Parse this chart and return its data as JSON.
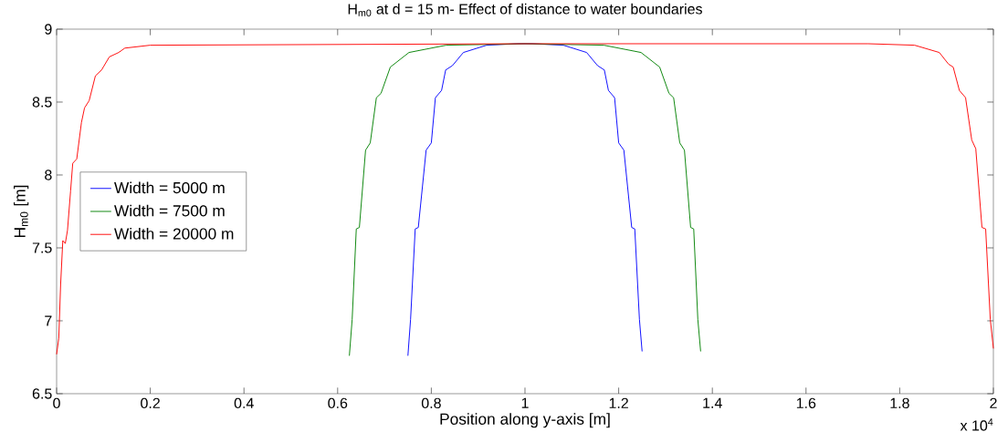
{
  "chart_data": {
    "type": "line",
    "title": "H$_{m0}$ at d = 15 m- Effect of distance to water boundaries",
    "xlabel": "Position along y-axis [m]",
    "ylabel": "H$_{m0}$ [m]",
    "annotations": [
      "x 10$^{4}$"
    ],
    "xlim": [
      0,
      2
    ],
    "ylim": [
      6.5,
      9
    ],
    "xticks": [
      0,
      0.2,
      0.4,
      0.6,
      0.8,
      1,
      1.2,
      1.4,
      1.6,
      1.8,
      2
    ],
    "yticks": [
      6.5,
      7,
      7.5,
      8,
      8.5,
      9
    ],
    "legend": "left",
    "series": [
      {
        "name": "Width = 5000 m",
        "color": "#0000ff",
        "x": [
          0.75,
          0.7557,
          0.7656,
          0.7722,
          0.7889,
          0.8,
          0.8087,
          0.8219,
          0.8306,
          0.8451,
          0.8684,
          0.9181,
          0.9843,
          1.0157,
          1.0819,
          1.1316,
          1.1549,
          1.1694,
          1.1781,
          1.1913,
          1.2,
          1.2111,
          1.2278,
          1.2344,
          1.2443,
          1.25
        ],
        "values": [
          6.76,
          7.01,
          7.63,
          7.64,
          8.17,
          8.22,
          8.53,
          8.58,
          8.72,
          8.75,
          8.84,
          8.89,
          8.9,
          8.9,
          8.89,
          8.84,
          8.75,
          8.72,
          8.58,
          8.53,
          8.22,
          8.17,
          7.64,
          7.63,
          7.01,
          6.79
        ]
      },
      {
        "name": "Width = 7500 m",
        "color": "#008000",
        "x": [
          0.625,
          0.631,
          0.6398,
          0.6464,
          0.6596,
          0.6696,
          0.6827,
          0.6926,
          0.7125,
          0.7523,
          0.8318,
          1,
          1.1682,
          1.2477,
          1.2875,
          1.3074,
          1.3173,
          1.3304,
          1.3404,
          1.3536,
          1.3602,
          1.369,
          1.375
        ],
        "values": [
          6.76,
          7.01,
          7.63,
          7.64,
          8.17,
          8.22,
          8.53,
          8.56,
          8.74,
          8.84,
          8.89,
          8.9,
          8.89,
          8.84,
          8.74,
          8.56,
          8.53,
          8.22,
          8.17,
          7.64,
          7.63,
          7.01,
          6.79
        ]
      },
      {
        "name": "Width = 20000 m",
        "color": "#ff0000",
        "x": [
          0,
          0.0046,
          0.0086,
          0.0132,
          0.0185,
          0.0232,
          0.0298,
          0.0344,
          0.043,
          0.053,
          0.0596,
          0.0695,
          0.0828,
          0.096,
          0.1126,
          0.1325,
          0.1457,
          0.2,
          1,
          1.7327,
          1.8317,
          1.8845,
          1.9043,
          1.9142,
          1.9274,
          1.9406,
          1.9538,
          1.9624,
          1.9756,
          1.9835,
          1.9934,
          2
        ],
        "values": [
          6.77,
          6.88,
          7.25,
          7.55,
          7.53,
          7.62,
          7.89,
          8.08,
          8.11,
          8.36,
          8.46,
          8.51,
          8.68,
          8.72,
          8.81,
          8.84,
          8.87,
          8.89,
          8.9,
          8.9,
          8.89,
          8.84,
          8.76,
          8.74,
          8.58,
          8.53,
          8.24,
          8.18,
          7.64,
          7.63,
          7.01,
          6.81
        ]
      }
    ]
  }
}
